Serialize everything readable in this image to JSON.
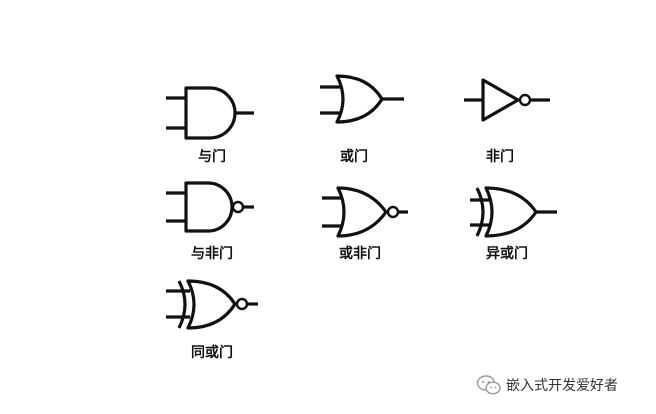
{
  "gates": {
    "and": {
      "label": "与门"
    },
    "or": {
      "label": "或门"
    },
    "not": {
      "label": "非门"
    },
    "nand": {
      "label": "与非门"
    },
    "nor": {
      "label": "或非门"
    },
    "xor": {
      "label": "异或门"
    },
    "xnor": {
      "label": "同或门"
    }
  },
  "watermark": {
    "text": "嵌入式开发爱好者",
    "icon": "wechat-icon"
  },
  "colors": {
    "ink": "#111111",
    "background": "#ffffff",
    "watermark_text": "#333333"
  }
}
